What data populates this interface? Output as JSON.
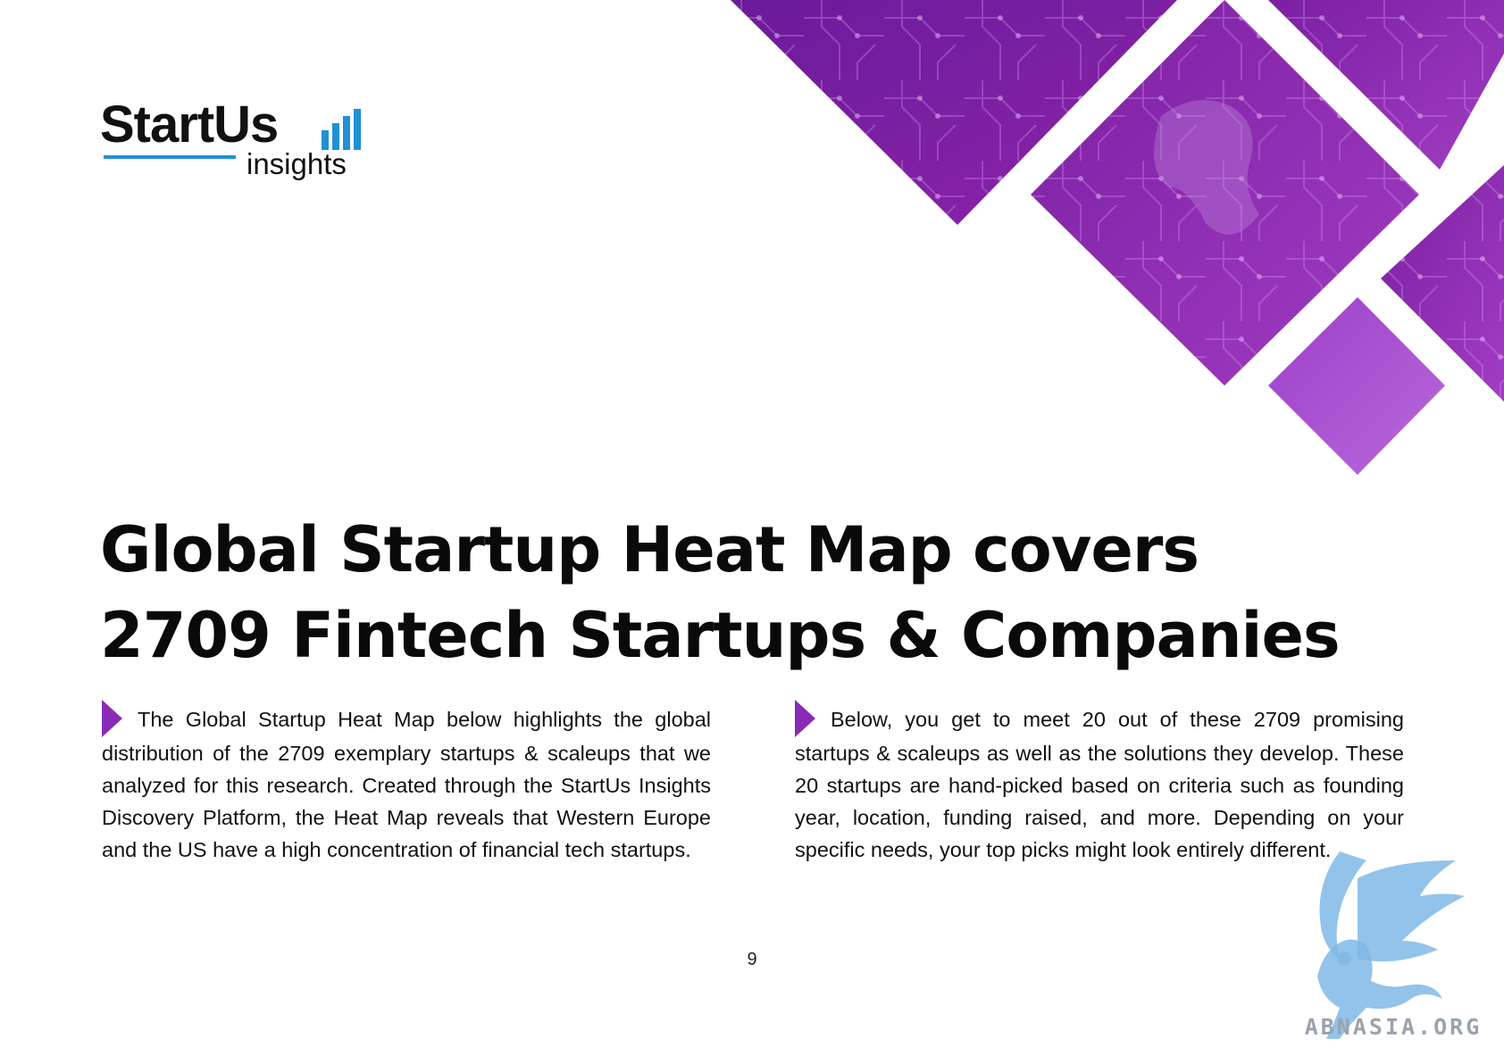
{
  "brand": {
    "name": "StartUs",
    "sub": "insights",
    "accent_color": "#1e90d6",
    "hero_color": "#7b1fa2"
  },
  "title": {
    "line1": "Global Startup Heat Map covers",
    "line2": "2709 Fintech Startups & Companies"
  },
  "columns": {
    "left": "The Global Startup Heat Map below highlights the global distribution of the 2709 exemplary startups & scaleups that we analyzed for this research. Created through the StartUs In­sights Discovery Platform, the Heat Map reveals that Western Europe and the US have a high concentration of financial tech startups.",
    "right": "Below, you get to meet 20 out of these 2709 promising startups & scaleups as well as the solutions they develop. These 20 startups are hand-picked based on criteria such as founding year, location, funding raised, and more. Depending on your specific needs, your top picks might look entirely dif­ferent."
  },
  "page_number": "9",
  "watermark": {
    "text": "ABNASIA.ORG"
  }
}
